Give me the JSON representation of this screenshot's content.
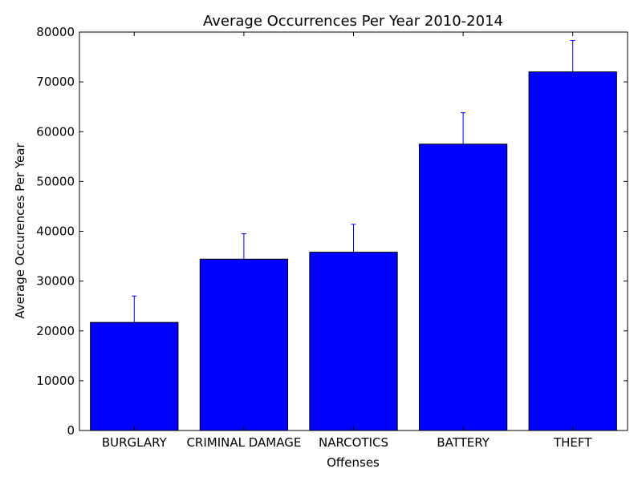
{
  "chart_data": {
    "type": "bar",
    "title": "Average Occurrences Per Year 2010-2014",
    "xlabel": "Offenses",
    "ylabel": "Average Occurences Per Year",
    "categories": [
      "BURGLARY",
      "CRIMINAL DAMAGE",
      "NARCOTICS",
      "BATTERY",
      "THEFT"
    ],
    "values": [
      21700,
      34400,
      35800,
      57500,
      72000
    ],
    "error_upper": [
      5300,
      5100,
      5600,
      6300,
      6300
    ],
    "ylim": [
      0,
      80000
    ],
    "yticks": [
      0,
      10000,
      20000,
      30000,
      40000,
      50000,
      60000,
      70000,
      80000
    ],
    "ytick_labels": [
      "0",
      "10000",
      "20000",
      "30000",
      "40000",
      "50000",
      "60000",
      "70000",
      "80000"
    ],
    "grid": false,
    "bar_color": "#0000ff",
    "edge_color": "#000000",
    "errorbar_color": "#0000ff"
  }
}
